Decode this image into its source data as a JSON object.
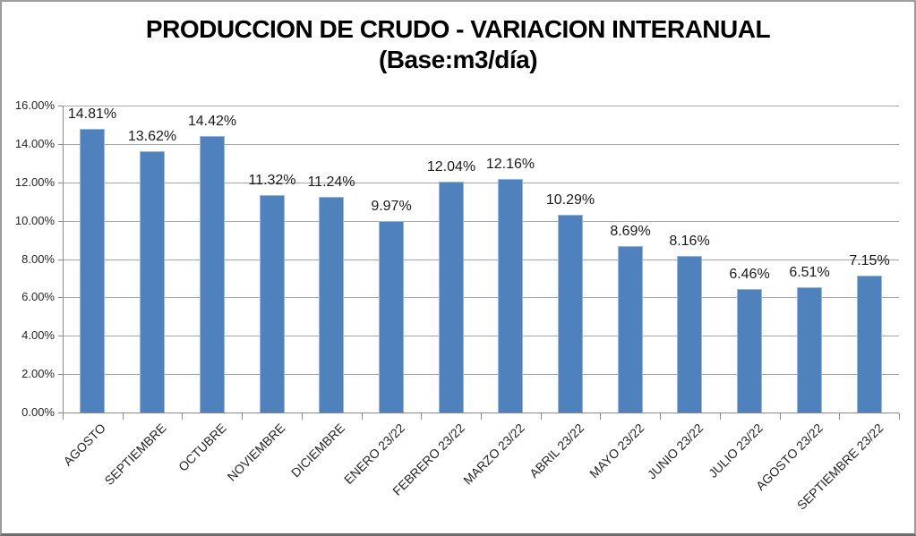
{
  "title": {
    "line1": "PRODUCCION DE CRUDO - VARIACION INTERANUAL",
    "line2": "(Base:m3/día)"
  },
  "colors": {
    "bar_fill": "#4F81BD",
    "bar_border": "#9ab7dc",
    "gridline": "#a6a6a6",
    "axis": "#8c8c8c",
    "title_text": "#000000",
    "label_text": "#1a1a1a",
    "tick_text": "#262626",
    "frame_border": "#9d9d9d"
  },
  "chart_data": {
    "type": "bar",
    "title": "PRODUCCION DE CRUDO - VARIACION INTERANUAL (Base:m3/día)",
    "xlabel": "",
    "ylabel": "",
    "ylim": [
      0,
      16
    ],
    "y_tick_step": 2,
    "y_tick_labels": [
      "16.00%",
      "14.00%",
      "12.00%",
      "10.00%",
      "8.00%",
      "6.00%",
      "4.00%",
      "2.00%",
      "0.00%"
    ],
    "grid": true,
    "legend_position": "none",
    "categories": [
      "AGOSTO",
      "SEPTIEMBRE",
      "OCTUBRE",
      "NOVIEMBRE",
      "DICIEMBRE",
      "ENERO 23/22",
      "FEBRERO 23/22",
      "MARZO 23/22",
      "ABRIL 23/22",
      "MAYO 23/22",
      "JUNIO 23/22",
      "JULIO 23/22",
      "AGOSTO 23/22",
      "SEPTIEMBRE 23/22"
    ],
    "values": [
      14.81,
      13.62,
      14.42,
      11.32,
      11.24,
      9.97,
      12.04,
      12.16,
      10.29,
      8.69,
      8.16,
      6.46,
      6.51,
      7.15
    ],
    "data_labels": [
      "14.81%",
      "13.62%",
      "14.42%",
      "11.32%",
      "11.24%",
      "9.97%",
      "12.04%",
      "12.16%",
      "10.29%",
      "8.69%",
      "8.16%",
      "6.46%",
      "6.51%",
      "7.15%"
    ]
  }
}
